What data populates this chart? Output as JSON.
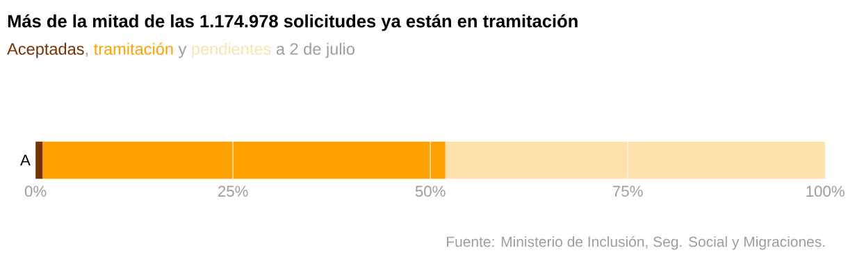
{
  "chart_data": {
    "type": "bar",
    "orientation": "horizontal",
    "stacked": true,
    "title": "Más de la mitad de las 1.174.978 solicitudes ya están en tramitación",
    "subtitle": "a 2 de julio",
    "categories": [
      "A"
    ],
    "series": [
      {
        "name": "Aceptadas",
        "color": "#7a3000",
        "values": [
          0.9
        ]
      },
      {
        "name": "tramitación",
        "color": "#ffa200",
        "values": [
          51.0
        ]
      },
      {
        "name": "pendientes",
        "color": "#ffe1ae",
        "values": [
          48.1
        ]
      }
    ],
    "xlim": [
      0,
      100
    ],
    "xticks": [
      {
        "value": 0,
        "label": "0%"
      },
      {
        "value": 25,
        "label": "25%"
      },
      {
        "value": 50,
        "label": "50%"
      },
      {
        "value": 75,
        "label": "75%"
      },
      {
        "value": 100,
        "label": "100%"
      }
    ],
    "ref_lines": [
      {
        "axis": "x",
        "value": 25,
        "color": "#ffffff"
      },
      {
        "axis": "x",
        "value": 50,
        "color": "#ffffff"
      },
      {
        "axis": "x",
        "value": 75,
        "color": "#ffffff"
      }
    ],
    "legend": "top left",
    "annotations": [
      ",",
      "y",
      "Fuente: Ministerio de Inclusión, Seg. Social y Migraciones."
    ]
  }
}
